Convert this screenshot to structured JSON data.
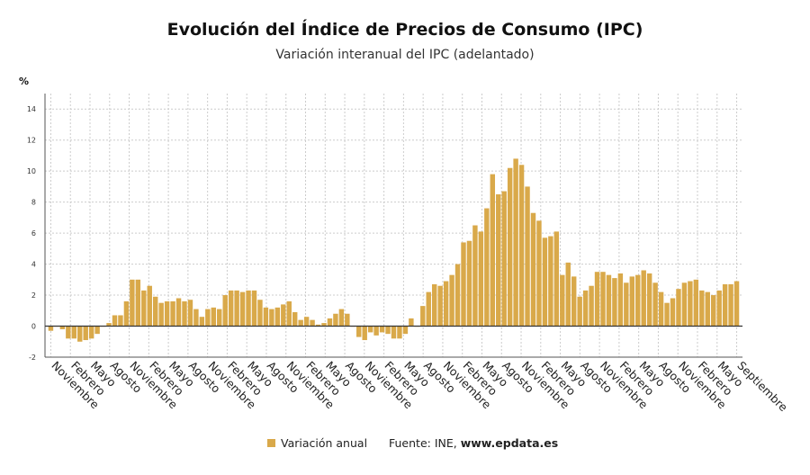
{
  "title": "Evolución del Índice de Precios de Consumo (IPC)",
  "subtitle": "Variación interanual del IPC (adelantado)",
  "unit_label": "%",
  "colors": {
    "bar": "#d9a94a",
    "axis": "#333333",
    "grid": "#cccccc"
  },
  "legend": {
    "label": "Variación anual"
  },
  "source": {
    "prefix": "Fuente: INE, ",
    "site": "www.epdata.es"
  },
  "chart_data": {
    "type": "bar",
    "title": "Evolución del Índice de Precios de Consumo (IPC)",
    "subtitle": "Variación interanual del IPC (adelantado)",
    "ylabel": "%",
    "ylim": [
      -2,
      15
    ],
    "yticks": [
      -2,
      0,
      2,
      4,
      6,
      8,
      10,
      12,
      14
    ],
    "grid": true,
    "legend_position": "bottom",
    "xtick_labels": [
      "Noviembre",
      "Febrero",
      "Mayo",
      "Agosto",
      "Noviembre",
      "Febrero",
      "Mayo",
      "Agosto",
      "Noviembre",
      "Febrero",
      "Mayo",
      "Agosto",
      "Noviembre",
      "Febrero",
      "Mayo",
      "Agosto",
      "Noviembre",
      "Febrero",
      "Mayo",
      "Agosto",
      "Noviembre",
      "Febrero",
      "Mayo",
      "Agosto",
      "Noviembre",
      "Febrero",
      "Mayo",
      "Agosto",
      "Noviembre",
      "Febrero",
      "Mayo",
      "Agosto",
      "Noviembre",
      "Febrero",
      "Mayo",
      "Septiembre"
    ],
    "series": [
      {
        "name": "Variación anual",
        "values": [
          -0.3,
          0.0,
          -0.2,
          -0.8,
          -0.8,
          -1.0,
          -0.9,
          -0.8,
          -0.5,
          0.0,
          0.2,
          0.7,
          0.7,
          1.6,
          3.0,
          3.0,
          2.3,
          2.6,
          1.9,
          1.5,
          1.6,
          1.6,
          1.8,
          1.6,
          1.7,
          1.1,
          0.6,
          1.1,
          1.2,
          1.1,
          2.0,
          2.3,
          2.3,
          2.2,
          2.3,
          2.3,
          1.7,
          1.2,
          1.1,
          1.2,
          1.4,
          1.6,
          0.9,
          0.4,
          0.6,
          0.4,
          0.1,
          0.2,
          0.5,
          0.8,
          1.1,
          0.8,
          0.0,
          -0.7,
          -0.9,
          -0.4,
          -0.6,
          -0.4,
          -0.5,
          -0.8,
          -0.8,
          -0.5,
          0.5,
          0.0,
          1.3,
          2.2,
          2.7,
          2.6,
          2.9,
          3.3,
          4.0,
          5.4,
          5.5,
          6.5,
          6.1,
          7.6,
          9.8,
          8.5,
          8.7,
          10.2,
          10.8,
          10.4,
          9.0,
          7.3,
          6.8,
          5.7,
          5.8,
          6.1,
          3.3,
          4.1,
          3.2,
          1.9,
          2.3,
          2.6,
          3.5,
          3.5,
          3.3,
          3.1,
          3.4,
          2.8,
          3.2,
          3.3,
          3.6,
          3.4,
          2.8,
          2.2,
          1.5,
          1.8,
          2.4,
          2.8,
          2.9,
          3.0,
          2.3,
          2.2,
          2.0,
          2.3,
          2.7,
          2.7,
          2.9
        ]
      }
    ]
  }
}
